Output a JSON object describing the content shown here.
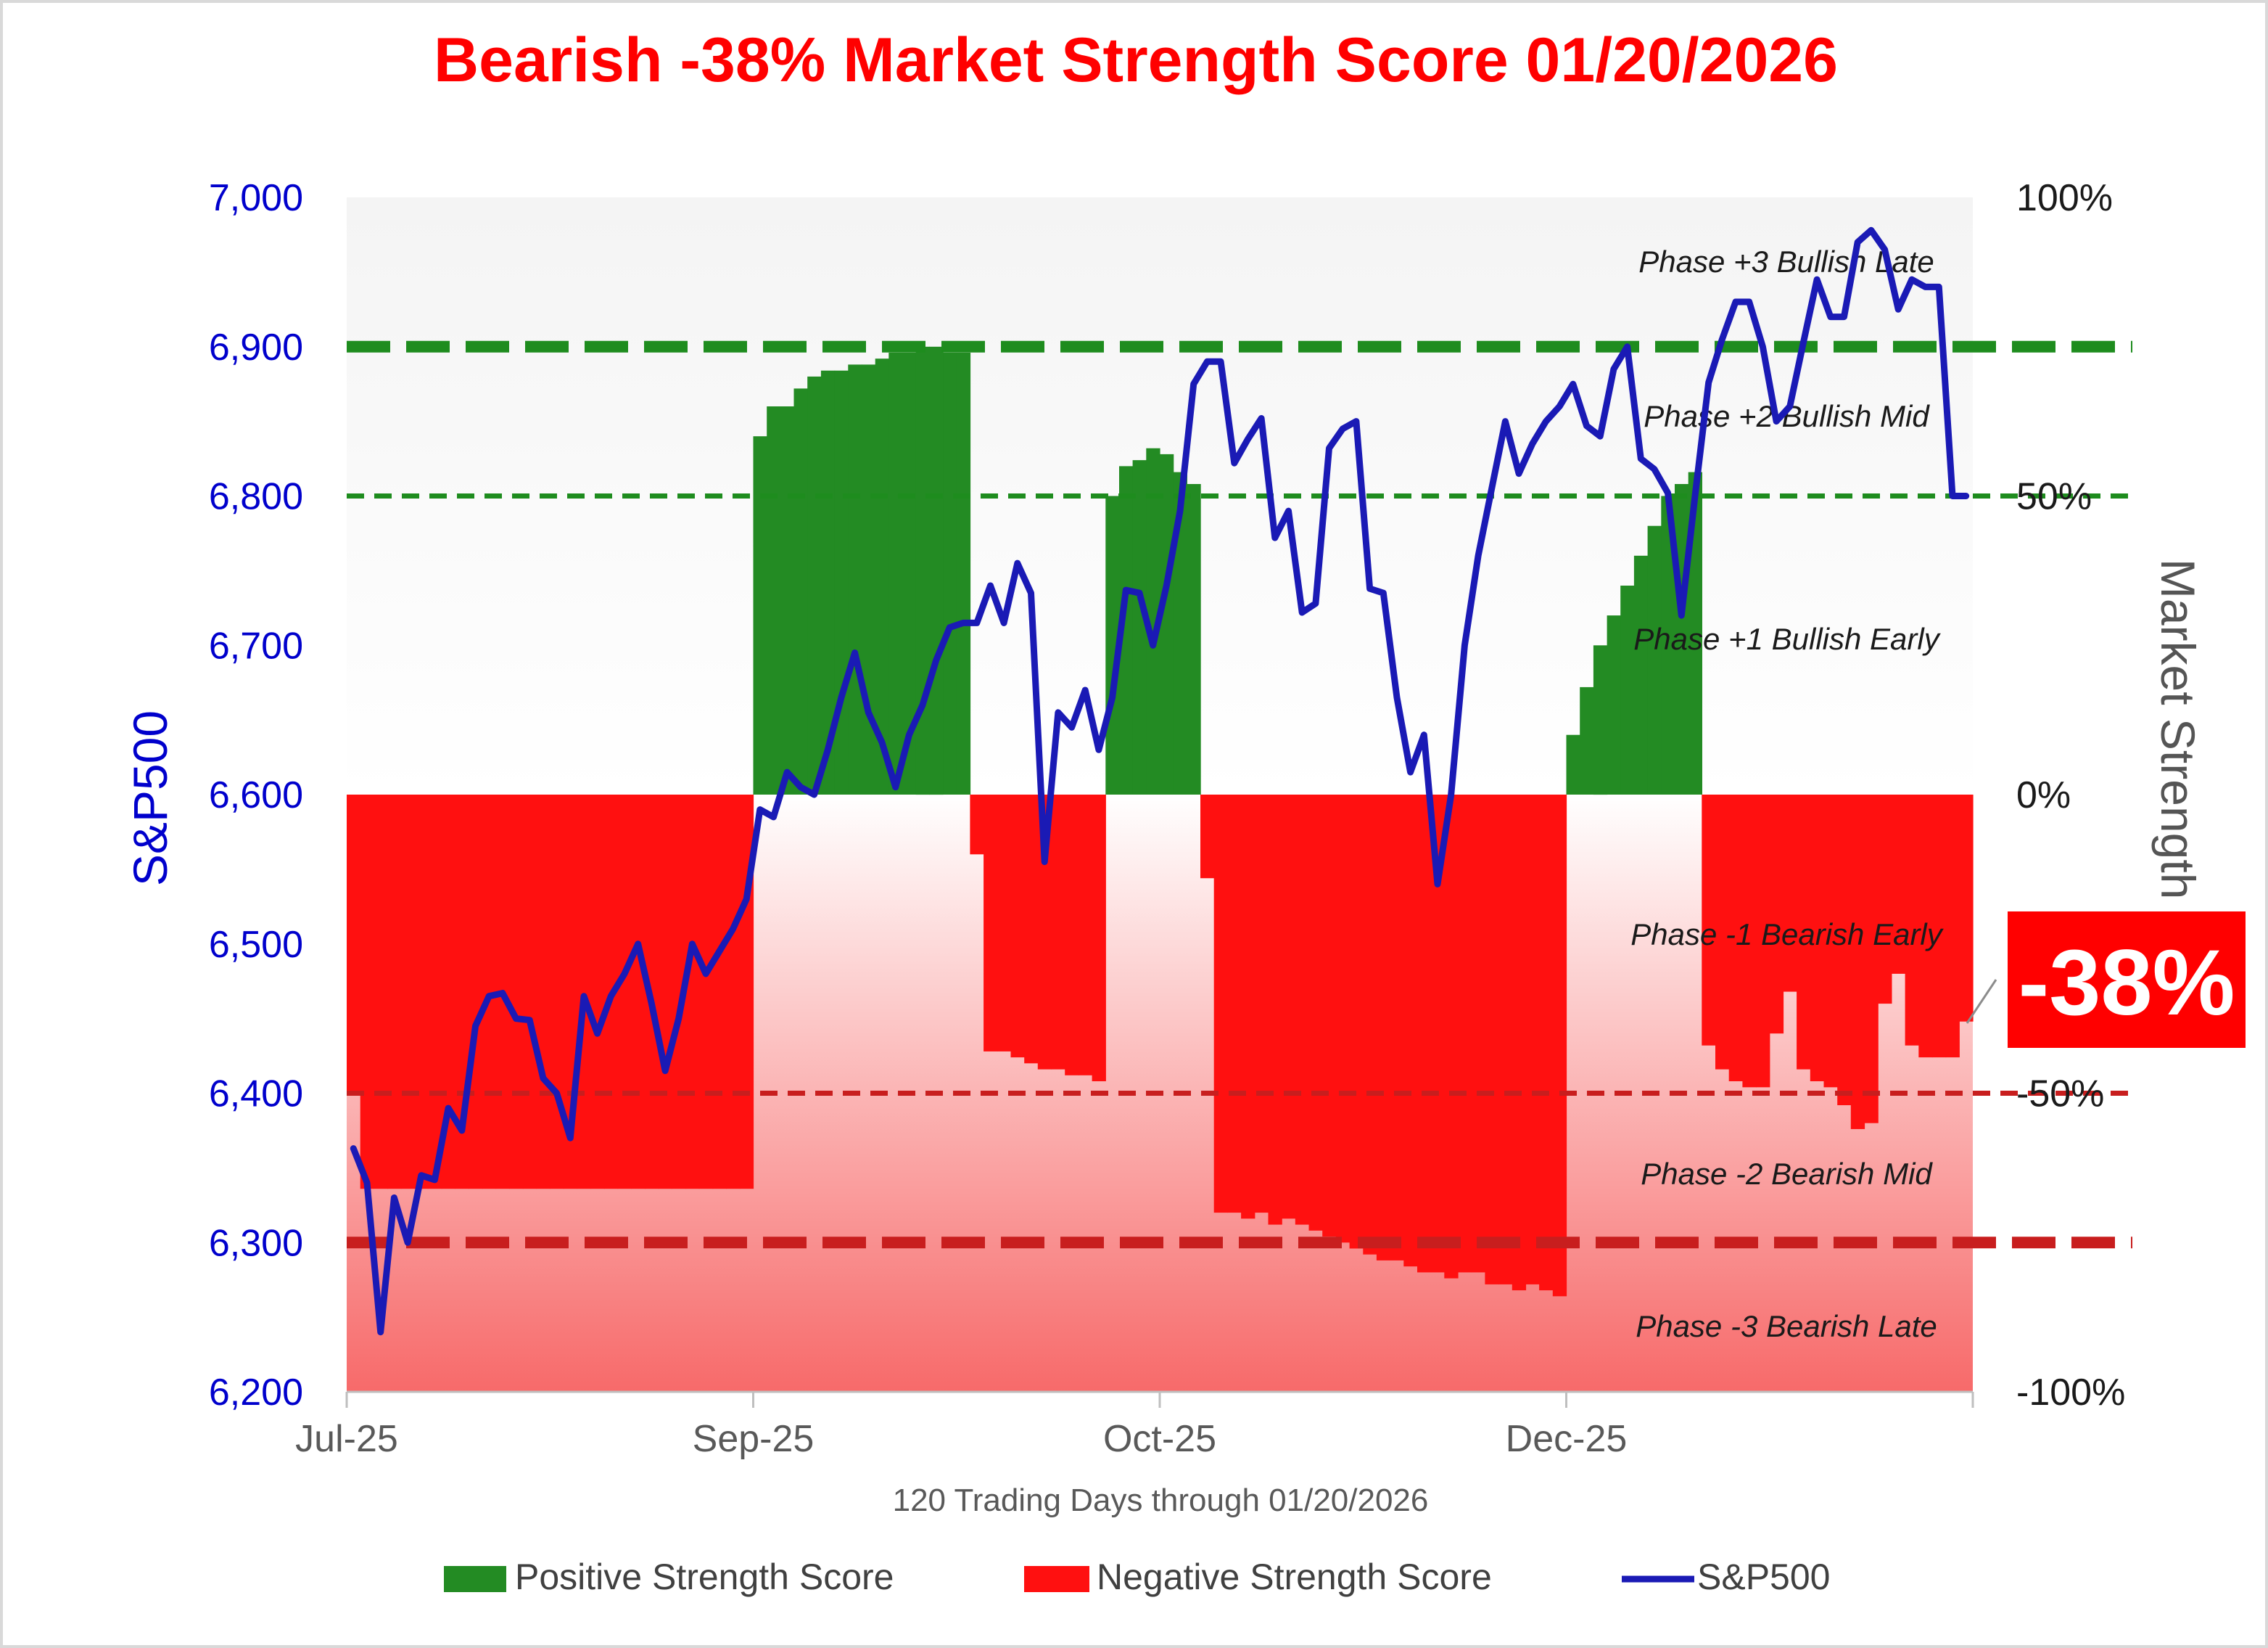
{
  "chart_data": {
    "type": "bar",
    "title": "Bearish -38% Market Strength Score 01/20/2026",
    "xlabel": "120 Trading Days through 01/20/2026",
    "ylabel_left": "S&P500",
    "ylabel_right": "Market Strength Score",
    "ylim_left": [
      6200,
      7000
    ],
    "ylim_right": [
      -100,
      100
    ],
    "left_ticks": [
      "6,200",
      "6,300",
      "6,400",
      "6,500",
      "6,600",
      "6,700",
      "6,800",
      "6,900",
      "7,000"
    ],
    "right_ticks": [
      "-100%",
      "-50%",
      "0%",
      "50%",
      "100%"
    ],
    "x_ticks": [
      "Jul-25",
      "Sep-25",
      "Oct-25",
      "Dec-25"
    ],
    "x_tick_days": [
      0,
      30,
      60,
      90
    ],
    "days": 120,
    "phases": [
      "Phase +3 Bullish Late",
      "Phase +2 Bullish Mid",
      "Phase +1 Bullish Early",
      "Phase -1 Bearish Early",
      "Phase -2 Bearish Mid",
      "Phase -3 Bearish Late"
    ],
    "phase_lines": [
      75,
      50,
      -50,
      -75
    ],
    "current_score_label": "-38%",
    "colors": {
      "title": "#ff0000",
      "positive": "#238b23",
      "negative": "#ff1010",
      "sp500": "#1a1ab5",
      "left_axis": "#0000cc",
      "right_axis": "#555555"
    },
    "series": [
      {
        "name": "Positive Strength Score",
        "type": "bar"
      },
      {
        "name": "Negative Strength Score",
        "type": "bar"
      },
      {
        "name": "S&P500",
        "type": "line"
      }
    ],
    "strength_score": [
      -50,
      -66,
      -66,
      -66,
      -66,
      -66,
      -66,
      -66,
      -66,
      -66,
      -66,
      -66,
      -66,
      -66,
      -66,
      -66,
      -66,
      -66,
      -66,
      -66,
      -66,
      -66,
      -66,
      -66,
      -66,
      -66,
      -66,
      -66,
      -66,
      -66,
      60,
      65,
      65,
      68,
      70,
      71,
      71,
      72,
      72,
      73,
      74,
      74,
      75,
      75,
      74,
      74,
      -10,
      -43,
      -43,
      -44,
      -45,
      -46,
      -46,
      -47,
      -47,
      -48,
      50,
      55,
      56,
      58,
      57,
      54,
      52,
      -14,
      -70,
      -70,
      -71,
      -70,
      -72,
      -71,
      -72,
      -73,
      -74,
      -75,
      -76,
      -77,
      -78,
      -78,
      -79,
      -80,
      -80,
      -81,
      -80,
      -80,
      -82,
      -82,
      -83,
      -82,
      -83,
      -84,
      10,
      18,
      25,
      30,
      35,
      40,
      45,
      50,
      52,
      54,
      -42,
      -46,
      -48,
      -49,
      -49,
      -40,
      -33,
      -46,
      -48,
      -49,
      -52,
      -56,
      -55,
      -35,
      -30,
      -42,
      -44,
      -44,
      -44,
      -38
    ],
    "sp500": [
      6363,
      6340,
      6240,
      6330,
      6300,
      6345,
      6342,
      6390,
      6375,
      6445,
      6465,
      6467,
      6450,
      6449,
      6410,
      6400,
      6370,
      6465,
      6440,
      6465,
      6480,
      6500,
      6460,
      6415,
      6450,
      6500,
      6480,
      6495,
      6510,
      6530,
      6590,
      6585,
      6615,
      6605,
      6600,
      6630,
      6665,
      6695,
      6655,
      6635,
      6605,
      6640,
      6660,
      6690,
      6712,
      6715,
      6715,
      6740,
      6715,
      6755,
      6735,
      6555,
      6655,
      6645,
      6670,
      6630,
      6665,
      6737,
      6735,
      6700,
      6740,
      6790,
      6875,
      6890,
      6890,
      6822,
      6838,
      6852,
      6772,
      6790,
      6722,
      6728,
      6832,
      6845,
      6850,
      6738,
      6735,
      6665,
      6615,
      6640,
      6540,
      6600,
      6700,
      6760,
      6805,
      6850,
      6815,
      6835,
      6850,
      6860,
      6875,
      6847,
      6840,
      6885,
      6900,
      6825,
      6818,
      6802,
      6720,
      6800,
      6876,
      6905,
      6930,
      6930,
      6900,
      6850,
      6860,
      6903,
      6945,
      6920,
      6920,
      6970,
      6978,
      6965,
      6925,
      6945,
      6940,
      6940,
      6800,
      6800
    ]
  }
}
